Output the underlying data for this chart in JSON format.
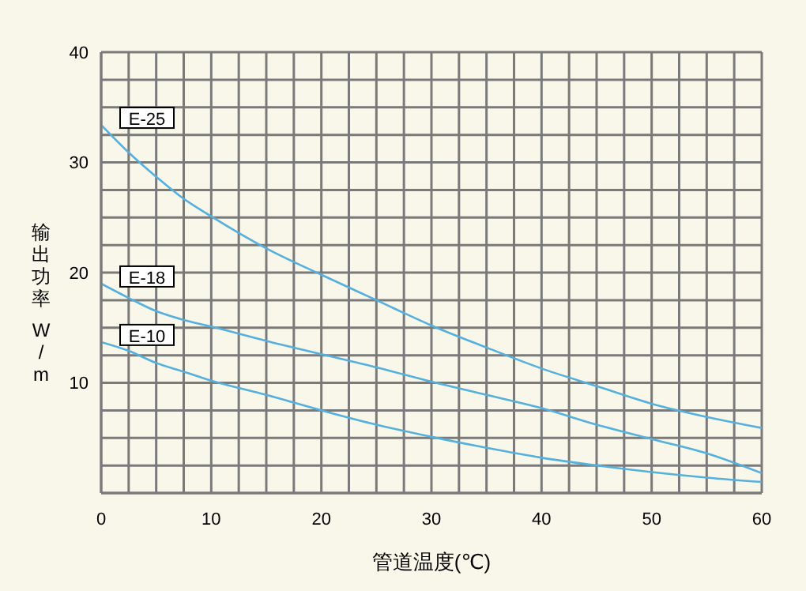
{
  "chart_data": {
    "type": "line",
    "xlabel": "管道温度(℃)",
    "ylabel": "输出功率 W/m",
    "xlim": [
      0,
      60
    ],
    "ylim": [
      0,
      40
    ],
    "xticks": [
      0,
      {
        "value": 2.5,
        "label": null
      },
      {
        "value": 5,
        "label": null
      },
      {
        "value": 7.5,
        "label": null
      },
      10,
      {
        "value": 12.5,
        "label": null
      },
      {
        "value": 15,
        "label": null
      },
      {
        "value": 17.5,
        "label": null
      },
      20,
      {
        "value": 22.5,
        "label": null
      },
      {
        "value": 25,
        "label": null
      },
      {
        "value": 27.5,
        "label": null
      },
      30,
      {
        "value": 32.5,
        "label": null
      },
      {
        "value": 35,
        "label": null
      },
      {
        "value": 37.5,
        "label": null
      },
      40,
      {
        "value": 42.5,
        "label": null
      },
      {
        "value": 45,
        "label": null
      },
      {
        "value": 47.5,
        "label": null
      },
      50,
      {
        "value": 52.5,
        "label": null
      },
      {
        "value": 55,
        "label": null
      },
      {
        "value": 57.5,
        "label": null
      },
      60
    ],
    "yticks": [
      {
        "value": 0,
        "label": null
      },
      {
        "value": 2.5,
        "label": null
      },
      {
        "value": 5,
        "label": null
      },
      {
        "value": 7.5,
        "label": null
      },
      10,
      {
        "value": 12.5,
        "label": null
      },
      {
        "value": 15,
        "label": null
      },
      {
        "value": 17.5,
        "label": null
      },
      20,
      {
        "value": 22.5,
        "label": null
      },
      {
        "value": 25,
        "label": null
      },
      {
        "value": 27.5,
        "label": null
      },
      30,
      {
        "value": 32.5,
        "label": null
      },
      {
        "value": 35,
        "label": null
      },
      {
        "value": 37.5,
        "label": null
      },
      40
    ],
    "grid": true,
    "marker": "none",
    "line_style": "solid",
    "x": [
      0,
      2.5,
      5,
      7.5,
      10,
      15,
      20,
      25,
      30,
      35,
      40,
      45,
      50,
      55,
      60
    ],
    "series": [
      {
        "name": "E-25",
        "color": "#55b0de",
        "values": [
          33.4,
          30.9,
          28.7,
          26.7,
          25.1,
          22.2,
          19.8,
          17.5,
          15.2,
          13.2,
          11.3,
          9.7,
          8.1,
          6.9,
          5.9
        ]
      },
      {
        "name": "E-18",
        "color": "#55b0de",
        "values": [
          19.0,
          17.7,
          16.5,
          15.7,
          15.1,
          13.8,
          12.6,
          11.4,
          10.1,
          8.9,
          7.7,
          6.2,
          4.9,
          3.6,
          1.8
        ]
      },
      {
        "name": "E-10",
        "color": "#55b0de",
        "values": [
          13.7,
          12.9,
          11.8,
          11.0,
          10.2,
          8.9,
          7.5,
          6.2,
          5.1,
          4.1,
          3.2,
          2.5,
          1.9,
          1.4,
          1.0
        ]
      }
    ]
  }
}
